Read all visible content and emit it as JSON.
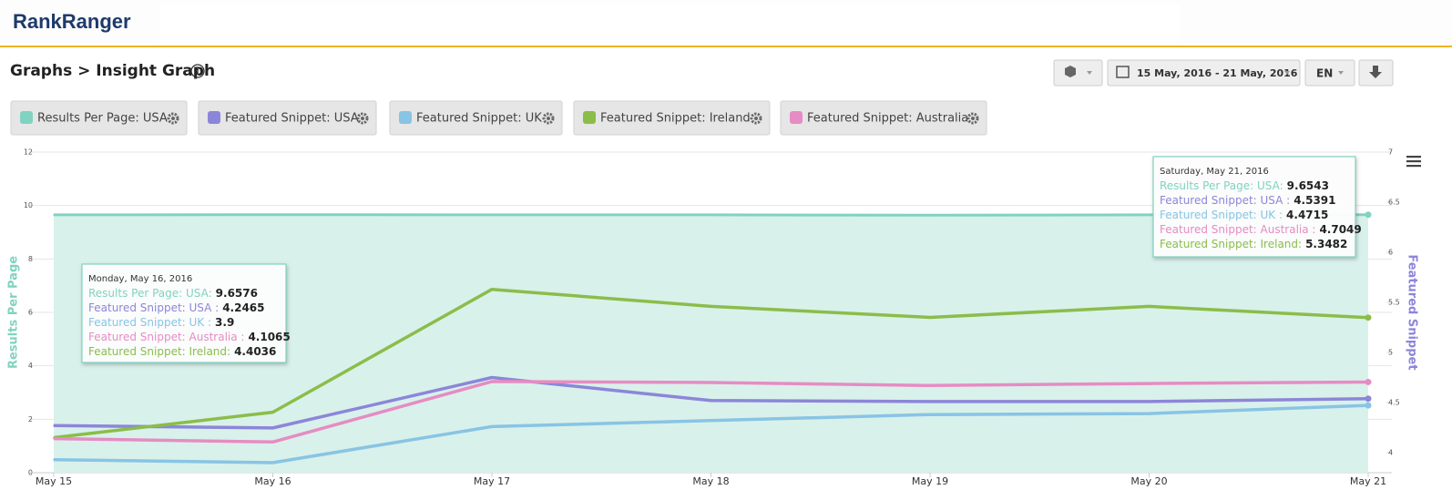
{
  "header": {
    "logo": "RankRanger",
    "breadcrumb": "Graphs > Insight Graph",
    "date_range": "15 May, 2016 - 21 May, 2016",
    "language": "EN"
  },
  "chart_data": {
    "type": "line",
    "categories": [
      "May 15",
      "May 16",
      "May 17",
      "May 18",
      "May 19",
      "May 20",
      "May 21"
    ],
    "ylabel": "Results Per Page",
    "y2label": "Featured Snippet",
    "ylim": [
      0,
      12
    ],
    "yticks": [
      0,
      2,
      4,
      6,
      8,
      10,
      12
    ],
    "y2lim": [
      3.8,
      7
    ],
    "y2ticks": [
      4,
      4.5,
      5,
      5.5,
      6,
      6.5,
      7
    ],
    "grid": true,
    "series": [
      {
        "name": "Results Per Page: USA",
        "color": "#7fd3c0",
        "axis": "y",
        "area": true,
        "values": [
          9.65,
          9.6576,
          9.65,
          9.65,
          9.64,
          9.65,
          9.6543
        ]
      },
      {
        "name": "Featured Snippet: USA",
        "color": "#8c86d9",
        "axis": "y2",
        "values": [
          4.27,
          4.2465,
          4.75,
          4.52,
          4.51,
          4.51,
          4.5391
        ]
      },
      {
        "name": "Featured Snippet: UK",
        "color": "#88c4e4",
        "axis": "y2",
        "values": [
          3.93,
          3.9,
          4.26,
          4.32,
          4.38,
          4.39,
          4.4715
        ]
      },
      {
        "name": "Featured Snippet: Ireland",
        "color": "#8bbd4a",
        "axis": "y2",
        "values": [
          4.15,
          4.4036,
          5.63,
          5.46,
          5.35,
          5.46,
          5.3482
        ]
      },
      {
        "name": "Featured Snippet: Australia",
        "color": "#e68cc3",
        "axis": "y2",
        "values": [
          4.14,
          4.1065,
          4.71,
          4.7,
          4.67,
          4.69,
          4.7049
        ]
      }
    ],
    "tooltips": [
      {
        "date": "Monday, May 16, 2016",
        "labels": [
          "Results Per Page: USA:",
          "Featured Snippet: USA :",
          "Featured Snippet: UK :",
          "Featured Snippet: Australia :",
          "Featured Snippet: Ireland:"
        ]
      },
      {
        "date": "Saturday, May 21, 2016",
        "labels": [
          "Results Per Page: USA:",
          "Featured Snippet: USA :",
          "Featured Snippet: UK :",
          "Featured Snippet: Australia :",
          "Featured Snippet: Ireland:"
        ]
      }
    ]
  }
}
